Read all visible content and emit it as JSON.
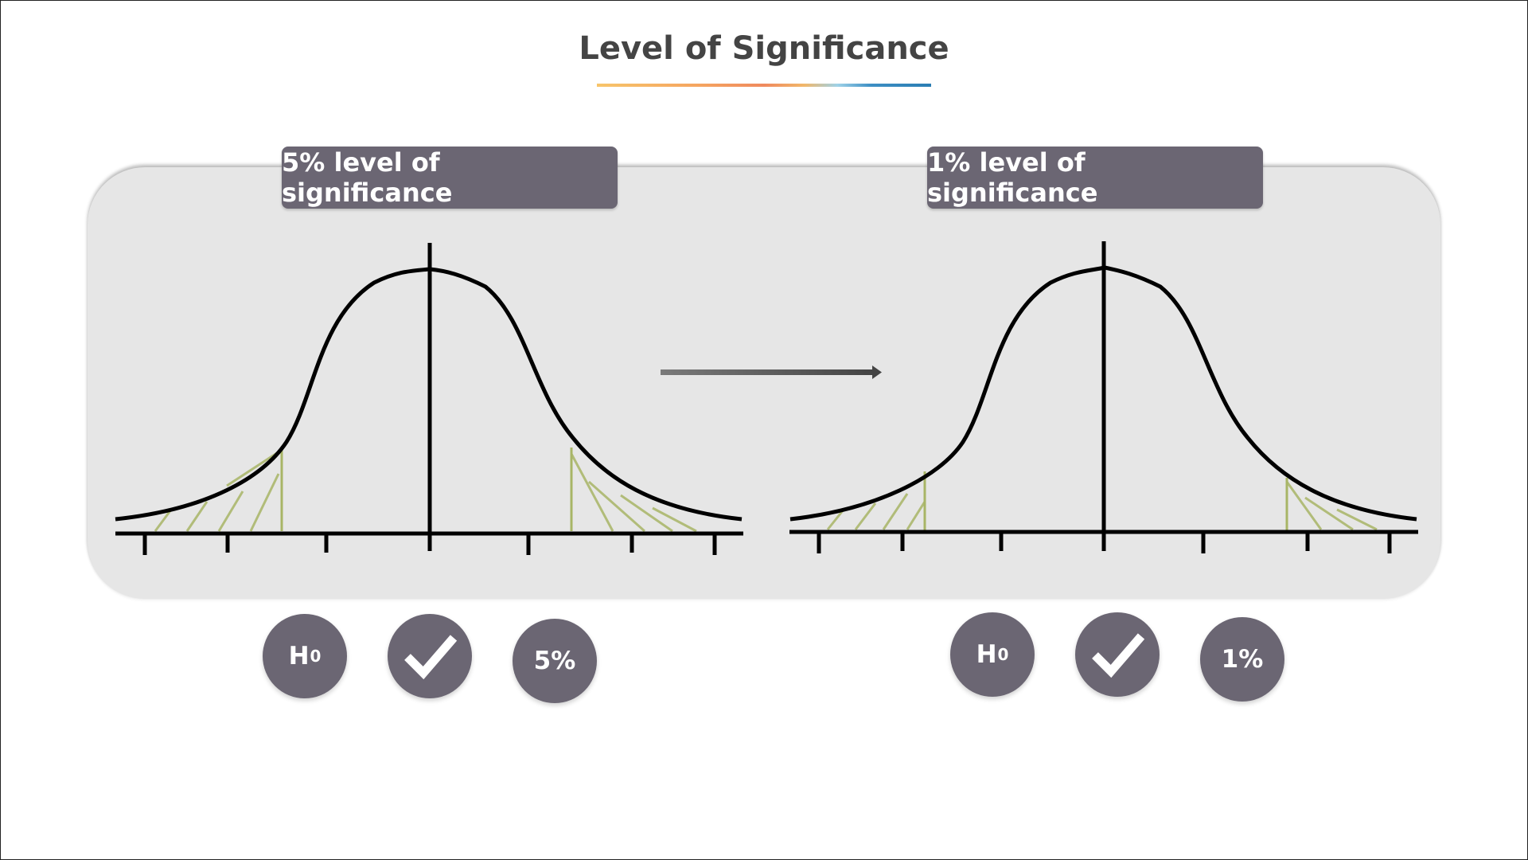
{
  "title": "Level of Significance",
  "left": {
    "label": "5% level of significance",
    "circles": {
      "h_main": "H",
      "h_sub": "0",
      "check_icon": "check-icon",
      "percent": "5%"
    }
  },
  "right": {
    "label": "1% level of significance",
    "circles": {
      "h_main": "H",
      "h_sub": "0",
      "check_icon": "check-icon",
      "percent": "1%"
    }
  },
  "colors": {
    "panel": "#e6e6e6",
    "badge": "#6b6673",
    "hatch": "#a8b566",
    "curve": "#000000"
  }
}
